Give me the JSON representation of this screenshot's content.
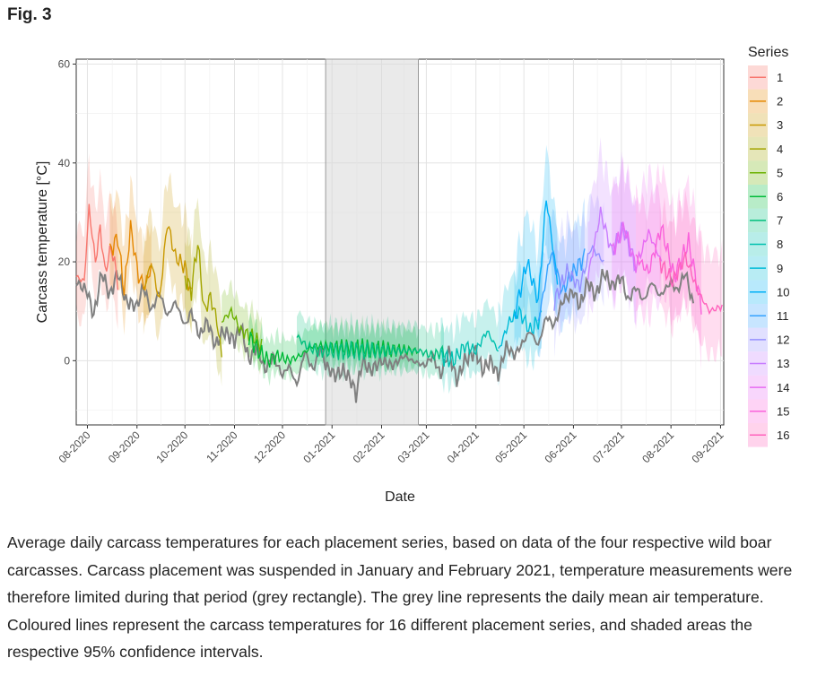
{
  "figure_label": "Fig. 3",
  "caption": "Average daily carcass temperatures for each placement series, based on data of the four respective wild boar carcasses. Carcass placement was suspended in January and February 2021, temperature measurements were therefore limited during that period (grey rectangle). The grey line represents the daily mean air temperature. Coloured lines represent the carcass temperatures for 16 different placement series, and shaded areas the respective 95% confidence intervals.",
  "chart_data": {
    "type": "line",
    "xlabel": "Date",
    "ylabel": "Carcass temperature [°C]",
    "xlim": [
      "2020-07-25",
      "2021-09-03"
    ],
    "ylim": [
      -13,
      61
    ],
    "yticks": [
      0,
      20,
      40,
      60
    ],
    "xticks": [
      {
        "date": "2020-08-01",
        "label": "08-2020"
      },
      {
        "date": "2020-09-01",
        "label": "09-2020"
      },
      {
        "date": "2020-10-01",
        "label": "10-2020"
      },
      {
        "date": "2020-11-01",
        "label": "11-2020"
      },
      {
        "date": "2020-12-01",
        "label": "12-2020"
      },
      {
        "date": "2021-01-01",
        "label": "01-2021"
      },
      {
        "date": "2021-02-01",
        "label": "02-2021"
      },
      {
        "date": "2021-03-01",
        "label": "03-2021"
      },
      {
        "date": "2021-04-01",
        "label": "04-2021"
      },
      {
        "date": "2021-05-01",
        "label": "05-2021"
      },
      {
        "date": "2021-06-01",
        "label": "06-2021"
      },
      {
        "date": "2021-07-01",
        "label": "07-2021"
      },
      {
        "date": "2021-08-01",
        "label": "08-2021"
      },
      {
        "date": "2021-09-01",
        "label": "09-2021"
      }
    ],
    "grid": true,
    "suspended_period": {
      "start": "2020-12-28",
      "end": "2021-02-24"
    },
    "legend": {
      "title": "Series",
      "position": "right"
    },
    "air_temperature": {
      "color": "#808080",
      "points": [
        [
          "2020-07-25",
          16
        ],
        [
          "2020-08-01",
          14
        ],
        [
          "2020-08-05",
          9
        ],
        [
          "2020-08-10",
          18
        ],
        [
          "2020-08-15",
          13
        ],
        [
          "2020-08-20",
          18
        ],
        [
          "2020-08-25",
          12
        ],
        [
          "2020-09-01",
          11
        ],
        [
          "2020-09-05",
          15
        ],
        [
          "2020-09-10",
          10
        ],
        [
          "2020-09-15",
          14
        ],
        [
          "2020-09-20",
          9
        ],
        [
          "2020-09-25",
          12
        ],
        [
          "2020-10-01",
          7
        ],
        [
          "2020-10-05",
          10
        ],
        [
          "2020-10-10",
          5
        ],
        [
          "2020-10-15",
          8
        ],
        [
          "2020-10-20",
          3
        ],
        [
          "2020-10-25",
          6
        ],
        [
          "2020-11-01",
          4
        ],
        [
          "2020-11-05",
          7
        ],
        [
          "2020-11-10",
          0
        ],
        [
          "2020-11-15",
          3
        ],
        [
          "2020-11-20",
          -2
        ],
        [
          "2020-11-25",
          1
        ],
        [
          "2020-12-01",
          -3
        ],
        [
          "2020-12-05",
          -1
        ],
        [
          "2020-12-10",
          -5
        ],
        [
          "2020-12-15",
          2
        ],
        [
          "2020-12-20",
          -2
        ],
        [
          "2020-12-25",
          3
        ],
        [
          "2020-12-28",
          -1
        ],
        [
          "2021-01-03",
          -3
        ],
        [
          "2021-01-08",
          -2
        ],
        [
          "2021-01-13",
          -4
        ],
        [
          "2021-01-16",
          -7
        ],
        [
          "2021-01-20",
          0
        ],
        [
          "2021-01-25",
          -2
        ],
        [
          "2021-02-01",
          0
        ],
        [
          "2021-02-08",
          -1
        ],
        [
          "2021-02-15",
          1
        ],
        [
          "2021-02-20",
          0
        ],
        [
          "2021-02-28",
          -1
        ],
        [
          "2021-03-05",
          1
        ],
        [
          "2021-03-10",
          -3
        ],
        [
          "2021-03-15",
          2
        ],
        [
          "2021-03-20",
          -4
        ],
        [
          "2021-03-25",
          0
        ],
        [
          "2021-04-01",
          2
        ],
        [
          "2021-04-05",
          -2
        ],
        [
          "2021-04-10",
          0
        ],
        [
          "2021-04-15",
          -3
        ],
        [
          "2021-04-20",
          3
        ],
        [
          "2021-04-25",
          1
        ],
        [
          "2021-05-01",
          4
        ],
        [
          "2021-05-05",
          6
        ],
        [
          "2021-05-10",
          3
        ],
        [
          "2021-05-15",
          9
        ],
        [
          "2021-05-20",
          7
        ],
        [
          "2021-05-25",
          12
        ],
        [
          "2021-06-01",
          14
        ],
        [
          "2021-06-05",
          11
        ],
        [
          "2021-06-10",
          16
        ],
        [
          "2021-06-15",
          13
        ],
        [
          "2021-06-20",
          18
        ],
        [
          "2021-06-25",
          15
        ],
        [
          "2021-07-01",
          17
        ],
        [
          "2021-07-05",
          12
        ],
        [
          "2021-07-10",
          15
        ],
        [
          "2021-07-15",
          12
        ],
        [
          "2021-07-20",
          16
        ],
        [
          "2021-07-25",
          13
        ],
        [
          "2021-08-01",
          16
        ],
        [
          "2021-08-05",
          14
        ],
        [
          "2021-08-10",
          18
        ],
        [
          "2021-08-15",
          11
        ]
      ]
    },
    "series": [
      {
        "name": "1",
        "color": "#F8766D",
        "ci": 10,
        "points": [
          [
            "2020-07-25",
            17
          ],
          [
            "2020-07-30",
            16
          ],
          [
            "2020-08-02",
            31
          ],
          [
            "2020-08-06",
            20
          ],
          [
            "2020-08-09",
            27
          ],
          [
            "2020-08-12",
            18
          ],
          [
            "2020-08-16",
            23
          ],
          [
            "2020-08-20",
            16
          ]
        ]
      },
      {
        "name": "2",
        "color": "#E58700",
        "ci": 9,
        "points": [
          [
            "2020-08-15",
            22
          ],
          [
            "2020-08-20",
            25
          ],
          [
            "2020-08-24",
            14
          ],
          [
            "2020-08-28",
            27
          ],
          [
            "2020-09-02",
            17
          ],
          [
            "2020-09-06",
            15
          ],
          [
            "2020-09-10",
            19
          ]
        ]
      },
      {
        "name": "3",
        "color": "#C99800",
        "ci": 10,
        "points": [
          [
            "2020-09-05",
            14
          ],
          [
            "2020-09-10",
            20
          ],
          [
            "2020-09-15",
            12
          ],
          [
            "2020-09-20",
            28
          ],
          [
            "2020-09-25",
            21
          ],
          [
            "2020-10-01",
            19
          ],
          [
            "2020-10-05",
            13
          ]
        ]
      },
      {
        "name": "4",
        "color": "#A3A500",
        "ci": 9,
        "points": [
          [
            "2020-10-01",
            17
          ],
          [
            "2020-10-05",
            14
          ],
          [
            "2020-10-09",
            24
          ],
          [
            "2020-10-13",
            10
          ],
          [
            "2020-10-17",
            13
          ],
          [
            "2020-10-21",
            8
          ],
          [
            "2020-10-24",
            1
          ]
        ]
      },
      {
        "name": "5",
        "color": "#6BB100",
        "ci": 5,
        "points": [
          [
            "2020-10-24",
            8
          ],
          [
            "2020-10-30",
            10
          ],
          [
            "2020-11-05",
            6
          ],
          [
            "2020-11-12",
            5
          ],
          [
            "2020-11-18",
            3
          ]
        ]
      },
      {
        "name": "6",
        "color": "#00BA38",
        "ci": 4,
        "points": [
          [
            "2020-11-10",
            5
          ],
          [
            "2020-11-16",
            2
          ],
          [
            "2020-11-22",
            0
          ],
          [
            "2020-11-28",
            1
          ],
          [
            "2020-12-05",
            0
          ],
          [
            "2020-12-12",
            1
          ],
          [
            "2020-12-20",
            3
          ],
          [
            "2021-02-24",
            2
          ]
        ]
      },
      {
        "name": "7",
        "color": "#00BF7D",
        "ci": 5,
        "points": [
          [
            "2020-12-10",
            5
          ],
          [
            "2020-12-16",
            3
          ],
          [
            "2020-12-22",
            2
          ],
          [
            "2021-02-24",
            2
          ],
          [
            "2021-03-05",
            1
          ],
          [
            "2021-03-12",
            2
          ]
        ]
      },
      {
        "name": "8",
        "color": "#00C0AF",
        "ci": 6,
        "points": [
          [
            "2021-03-10",
            1
          ],
          [
            "2021-03-18",
            0
          ],
          [
            "2021-03-25",
            3
          ],
          [
            "2021-04-01",
            2
          ],
          [
            "2021-04-08",
            6
          ],
          [
            "2021-04-15",
            2
          ]
        ]
      },
      {
        "name": "9",
        "color": "#00BCD8",
        "ci": 8,
        "points": [
          [
            "2021-04-15",
            2
          ],
          [
            "2021-04-22",
            8
          ],
          [
            "2021-04-28",
            10
          ],
          [
            "2021-05-05",
            6
          ],
          [
            "2021-05-12",
            9
          ]
        ]
      },
      {
        "name": "10",
        "color": "#00B0F6",
        "ci": 10,
        "points": [
          [
            "2021-04-25",
            9
          ],
          [
            "2021-05-03",
            20
          ],
          [
            "2021-05-10",
            12
          ],
          [
            "2021-05-15",
            33
          ],
          [
            "2021-05-22",
            16
          ]
        ]
      },
      {
        "name": "11",
        "color": "#35A2FF",
        "ci": 9,
        "points": [
          [
            "2021-05-10",
            8
          ],
          [
            "2021-05-18",
            22
          ],
          [
            "2021-05-25",
            14
          ],
          [
            "2021-06-01",
            18
          ],
          [
            "2021-06-08",
            21
          ]
        ]
      },
      {
        "name": "12",
        "color": "#9590FF",
        "ci": 10,
        "points": [
          [
            "2021-05-20",
            12
          ],
          [
            "2021-05-28",
            18
          ],
          [
            "2021-06-05",
            15
          ],
          [
            "2021-06-12",
            23
          ],
          [
            "2021-06-20",
            20
          ]
        ]
      },
      {
        "name": "13",
        "color": "#C77CFF",
        "ci": 12,
        "points": [
          [
            "2021-06-10",
            17
          ],
          [
            "2021-06-18",
            30
          ],
          [
            "2021-06-25",
            22
          ],
          [
            "2021-07-02",
            27
          ],
          [
            "2021-07-10",
            19
          ]
        ]
      },
      {
        "name": "14",
        "color": "#E76BF3",
        "ci": 12,
        "points": [
          [
            "2021-06-25",
            22
          ],
          [
            "2021-07-03",
            27
          ],
          [
            "2021-07-10",
            19
          ],
          [
            "2021-07-18",
            26
          ],
          [
            "2021-07-26",
            20
          ]
        ]
      },
      {
        "name": "15",
        "color": "#FA62DB",
        "ci": 12,
        "points": [
          [
            "2021-07-10",
            21
          ],
          [
            "2021-07-18",
            18
          ],
          [
            "2021-07-26",
            27
          ],
          [
            "2021-08-03",
            17
          ],
          [
            "2021-08-12",
            24
          ],
          [
            "2021-08-20",
            11
          ]
        ]
      },
      {
        "name": "16",
        "color": "#FF62BC",
        "ci": 11,
        "points": [
          [
            "2021-07-25",
            20
          ],
          [
            "2021-08-02",
            16
          ],
          [
            "2021-08-10",
            21
          ],
          [
            "2021-08-18",
            14
          ],
          [
            "2021-08-25",
            10
          ],
          [
            "2021-09-02",
            11
          ]
        ]
      }
    ]
  }
}
